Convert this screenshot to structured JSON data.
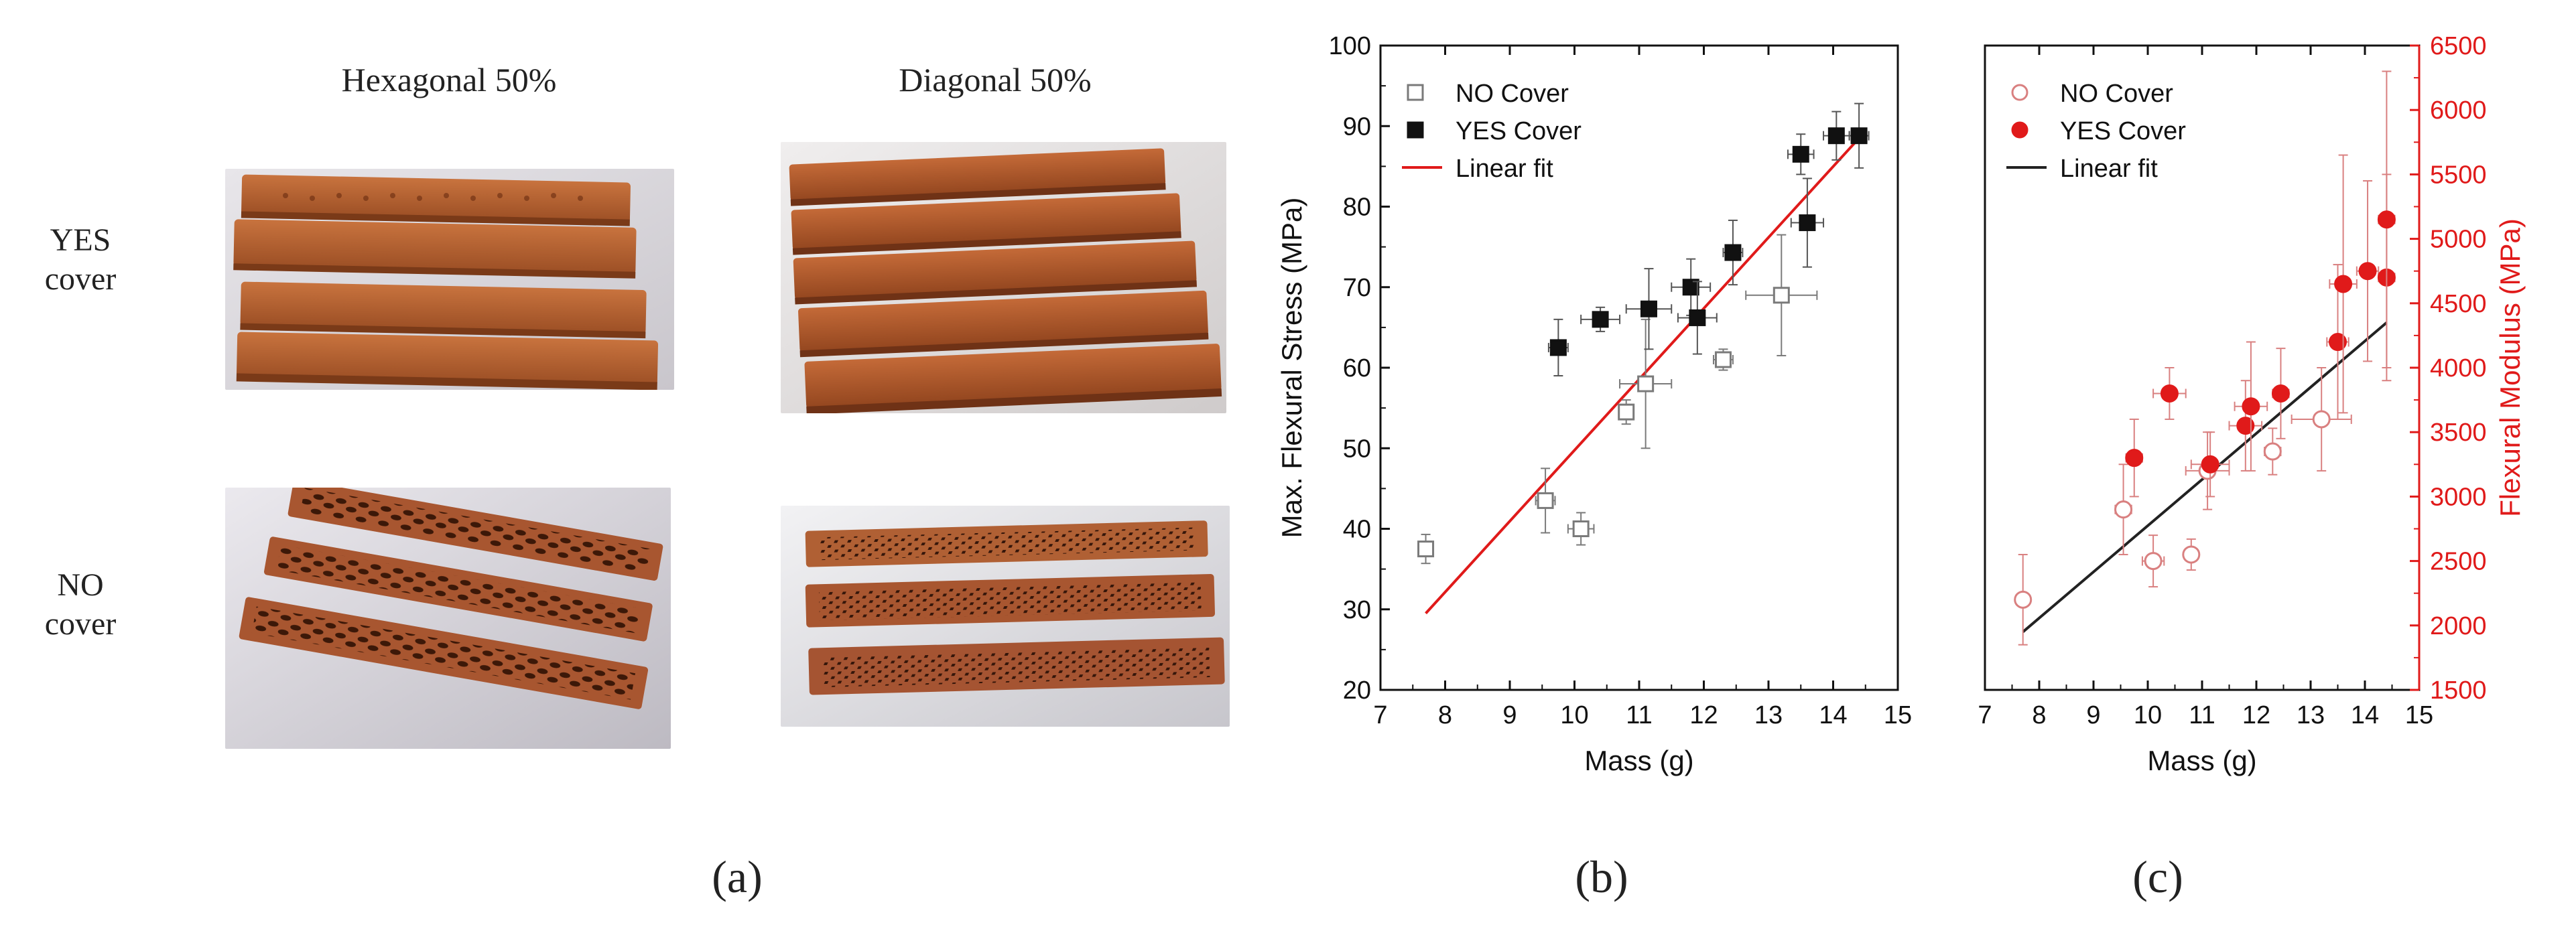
{
  "panel_a": {
    "columns": [
      "Hexagonal 50%",
      "Diagonal 50%"
    ],
    "rows": [
      {
        "line1": "YES",
        "line2": "cover"
      },
      {
        "line1": "NO",
        "line2": "cover"
      }
    ],
    "caption": "(a)"
  },
  "captions": {
    "b": "(b)",
    "c": "(c)"
  },
  "colors": {
    "black": "#111111",
    "red": "#e01a1a",
    "gray": "#7a7a7a",
    "pink": "#d98080"
  },
  "chart_data": [
    {
      "type": "scatter",
      "id": "b",
      "xlabel": "Mass (g)",
      "ylabel": "Max. Flexural Stress (MPa)",
      "xlim": [
        7,
        15
      ],
      "ylim": [
        20,
        100
      ],
      "xticks": [
        7,
        8,
        9,
        10,
        11,
        12,
        13,
        14,
        15
      ],
      "yticks": [
        20,
        30,
        40,
        50,
        60,
        70,
        80,
        90,
        100
      ],
      "legend": [
        "NO Cover",
        "YES Cover",
        "Linear fit"
      ],
      "series": [
        {
          "name": "NO Cover",
          "marker": "open-square",
          "points": [
            {
              "x": 7.7,
              "y": 37.5,
              "xerr": 0.1,
              "yerr": 1.8
            },
            {
              "x": 9.55,
              "y": 43.5,
              "xerr": 0.15,
              "yerr": 4.0
            },
            {
              "x": 10.1,
              "y": 40.0,
              "xerr": 0.2,
              "yerr": 2.0
            },
            {
              "x": 10.8,
              "y": 54.5,
              "xerr": 0.1,
              "yerr": 1.5
            },
            {
              "x": 11.1,
              "y": 58.0,
              "xerr": 0.4,
              "yerr": 8.0
            },
            {
              "x": 12.3,
              "y": 61.0,
              "xerr": 0.15,
              "yerr": 1.3
            },
            {
              "x": 13.2,
              "y": 69.0,
              "xerr": 0.55,
              "yerr": 7.5
            }
          ]
        },
        {
          "name": "YES Cover",
          "marker": "filled-square",
          "points": [
            {
              "x": 9.75,
              "y": 62.5,
              "xerr": 0.15,
              "yerr": 3.5
            },
            {
              "x": 10.4,
              "y": 66.0,
              "xerr": 0.3,
              "yerr": 1.5
            },
            {
              "x": 11.15,
              "y": 67.3,
              "xerr": 0.35,
              "yerr": 5.0
            },
            {
              "x": 11.8,
              "y": 70.0,
              "xerr": 0.3,
              "yerr": 3.5
            },
            {
              "x": 11.9,
              "y": 66.2,
              "xerr": 0.3,
              "yerr": 4.5
            },
            {
              "x": 12.45,
              "y": 74.3,
              "xerr": 0.15,
              "yerr": 4.0
            },
            {
              "x": 13.5,
              "y": 86.5,
              "xerr": 0.2,
              "yerr": 2.5
            },
            {
              "x": 13.6,
              "y": 78.0,
              "xerr": 0.25,
              "yerr": 5.5
            },
            {
              "x": 14.05,
              "y": 88.8,
              "xerr": 0.2,
              "yerr": 3.0
            },
            {
              "x": 14.4,
              "y": 88.8,
              "xerr": 0.15,
              "yerr": 4.0
            }
          ]
        }
      ],
      "fit": {
        "name": "Linear fit",
        "x1": 7.7,
        "y1": 29.5,
        "x2": 14.4,
        "y2": 88.5
      }
    },
    {
      "type": "scatter",
      "id": "c",
      "xlabel": "Mass (g)",
      "ylabel": "Flexural Modulus (MPa)",
      "xlim": [
        7,
        15
      ],
      "ylim": [
        1500,
        6500
      ],
      "xticks": [
        7,
        8,
        9,
        10,
        11,
        12,
        13,
        14,
        15
      ],
      "yticks": [
        1500,
        2000,
        2500,
        3000,
        3500,
        4000,
        4500,
        5000,
        5500,
        6000,
        6500
      ],
      "legend": [
        "NO Cover",
        "YES Cover",
        "Linear fit"
      ],
      "series": [
        {
          "name": "NO Cover",
          "marker": "open-circle",
          "points": [
            {
              "x": 7.7,
              "y": 2200,
              "xerr": 0.1,
              "yerr": 350
            },
            {
              "x": 9.55,
              "y": 2900,
              "xerr": 0.15,
              "yerr": 350
            },
            {
              "x": 10.1,
              "y": 2500,
              "xerr": 0.2,
              "yerr": 200
            },
            {
              "x": 10.8,
              "y": 2550,
              "xerr": 0.1,
              "yerr": 120
            },
            {
              "x": 11.1,
              "y": 3200,
              "xerr": 0.4,
              "yerr": 300
            },
            {
              "x": 12.3,
              "y": 3350,
              "xerr": 0.15,
              "yerr": 180
            },
            {
              "x": 13.2,
              "y": 3600,
              "xerr": 0.55,
              "yerr": 400
            }
          ]
        },
        {
          "name": "YES Cover",
          "marker": "filled-circle",
          "points": [
            {
              "x": 9.75,
              "y": 3300,
              "xerr": 0.15,
              "yerr": 300
            },
            {
              "x": 10.4,
              "y": 3800,
              "xerr": 0.3,
              "yerr": 200
            },
            {
              "x": 11.15,
              "y": 3250,
              "xerr": 0.35,
              "yerr": 250
            },
            {
              "x": 11.8,
              "y": 3550,
              "xerr": 0.3,
              "yerr": 350
            },
            {
              "x": 11.9,
              "y": 3700,
              "xerr": 0.3,
              "yerr": 500
            },
            {
              "x": 12.45,
              "y": 3800,
              "xerr": 0.15,
              "yerr": 350
            },
            {
              "x": 13.5,
              "y": 4200,
              "xerr": 0.2,
              "yerr": 600
            },
            {
              "x": 13.6,
              "y": 4650,
              "xerr": 0.25,
              "yerr": 1000
            },
            {
              "x": 14.05,
              "y": 4750,
              "xerr": 0.2,
              "yerr": 700
            },
            {
              "x": 14.4,
              "y": 4700,
              "xerr": 0.15,
              "yerr": 800
            },
            {
              "x": 14.4,
              "y": 5150,
              "xerr": 0.15,
              "yerr": 1150
            }
          ]
        }
      ],
      "fit": {
        "name": "Linear fit",
        "x1": 7.7,
        "y1": 1950,
        "x2": 14.4,
        "y2": 4350
      }
    }
  ]
}
